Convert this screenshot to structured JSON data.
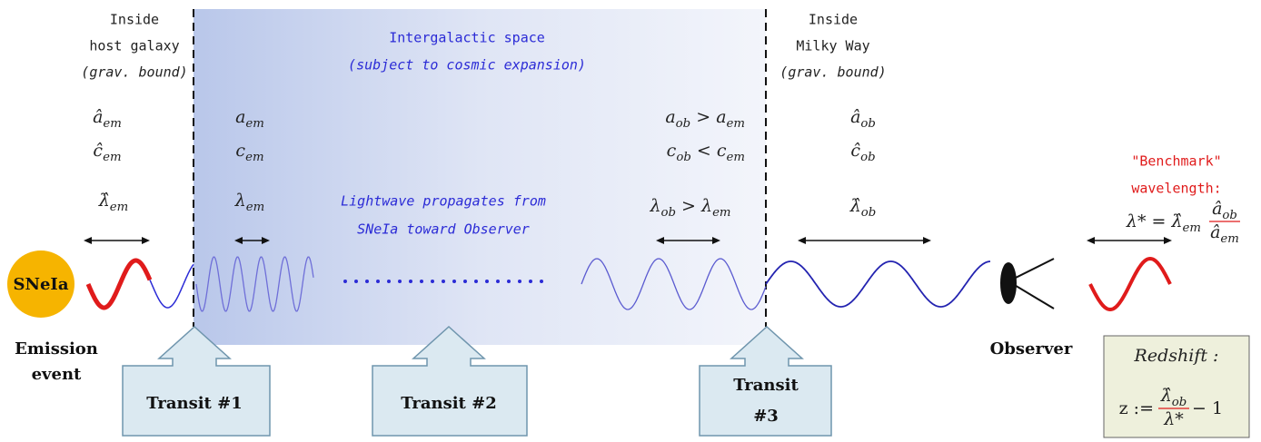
{
  "regions": {
    "host": [
      "Inside",
      "host galaxy",
      "(grav. bound)"
    ],
    "intergalactic": [
      "Intergalactic space",
      "(subject to cosmic expansion)"
    ],
    "milky_way": [
      "Inside",
      "Milky Way",
      "(grav. bound)"
    ]
  },
  "quantities": {
    "host_a": [
      {
        "b": "â",
        "s": "em"
      }
    ],
    "host_c": [
      {
        "b": "ĉ",
        "s": "em"
      }
    ],
    "emit_a": [
      {
        "b": "a",
        "s": "em"
      }
    ],
    "emit_c": [
      {
        "b": "c",
        "s": "em"
      }
    ],
    "obs_a": [
      {
        "b": "a",
        "s": "ob"
      },
      {
        "o": " > "
      },
      {
        "b": "a",
        "s": "em"
      }
    ],
    "obs_c": [
      {
        "b": "c",
        "s": "ob"
      },
      {
        "o": " < "
      },
      {
        "b": "c",
        "s": "em"
      }
    ],
    "mw_a": [
      {
        "b": "â",
        "s": "ob"
      }
    ],
    "mw_c": [
      {
        "b": "ĉ",
        "s": "ob"
      }
    ],
    "host_lambda": [
      {
        "b": "λ̂",
        "s": "em"
      }
    ],
    "emit_lambda": [
      {
        "b": "λ",
        "s": "em"
      }
    ],
    "obs_lambda": [
      {
        "b": "λ",
        "s": "ob"
      },
      {
        "o": " > "
      },
      {
        "b": "λ",
        "s": "em"
      }
    ],
    "mw_lambda": [
      {
        "b": "λ̂",
        "s": "ob"
      }
    ]
  },
  "propagation": [
    "Lightwave propagates from",
    "SNeIa toward Observer"
  ],
  "source": "SNeIa",
  "emission": [
    "Emission",
    "event"
  ],
  "observer": "Observer",
  "transits": [
    [
      "Transit #1"
    ],
    [
      "Transit #2"
    ],
    [
      "Transit",
      "#3"
    ]
  ],
  "benchmark": {
    "lines": [
      "\"Benchmark\"",
      "wavelength:"
    ],
    "formula": {
      "lhs": [
        {
          "b": "λ*"
        },
        {
          "o": " = "
        },
        {
          "b": "λ̂",
          "s": "em"
        }
      ],
      "num": [
        {
          "b": "â",
          "s": "ob"
        }
      ],
      "den": [
        {
          "b": "â",
          "s": "em"
        }
      ]
    }
  },
  "redshift": {
    "title": "Redshift :",
    "formula": {
      "lhs": [
        {
          "o": "z := "
        }
      ],
      "num": [
        {
          "b": "λ̂",
          "s": "ob"
        }
      ],
      "den": [
        {
          "b": "λ*"
        }
      ],
      "rhs": [
        {
          "o": " − 1"
        }
      ]
    }
  }
}
